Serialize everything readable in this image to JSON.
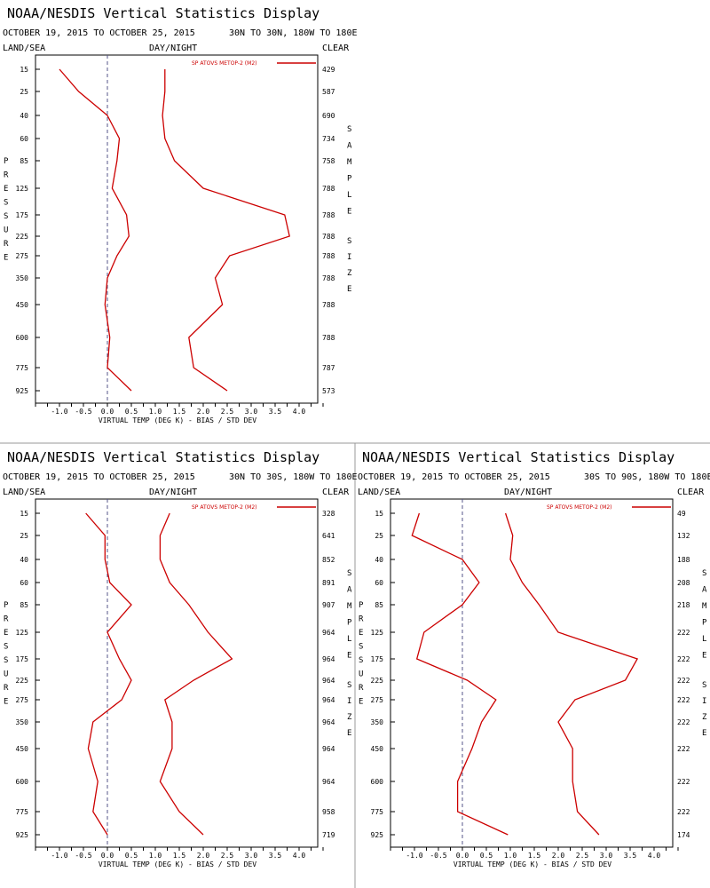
{
  "page": {
    "title": "NOAA/NESDIS Vertical Statistics Display",
    "left_header": "LAND/SEA",
    "mid_header": "DAY/NIGHT",
    "right_header": "CLEAR",
    "y_axis_label": "PRESSURE",
    "right_axis_label_1": "SAMPLE",
    "right_axis_label_2": "SIZE",
    "x_axis_label": "VIRTUAL TEMP (DEG K) - BIAS / STD DEV",
    "legend_label": "SP ATOVS METOP-2 (M2)",
    "line_color": "#cc0000",
    "zero_line_color": "#555588"
  },
  "chart_data": [
    {
      "type": "line",
      "title": "NOAA/NESDIS Vertical Statistics Display",
      "subtitle": "OCTOBER 19, 2015 TO OCTOBER 25, 2015",
      "region": "30N TO 30N, 180W TO 180E",
      "pressure_levels": [
        "15",
        "25",
        "40",
        "60",
        "85",
        "125",
        "175",
        "225",
        "275",
        "350",
        "450",
        "600",
        "775",
        "925"
      ],
      "series": [
        {
          "name": "SP ATOVS METOP-2 (M2)",
          "kind": "bias",
          "values": [
            -1.0,
            -0.6,
            0.0,
            0.25,
            0.2,
            0.1,
            0.4,
            0.45,
            0.2,
            0.0,
            -0.05,
            0.05,
            0.0,
            0.5
          ]
        },
        {
          "name": "SP ATOVS METOP-2 (M2)",
          "kind": "std_dev",
          "values": [
            1.2,
            1.2,
            1.15,
            1.2,
            1.4,
            2.0,
            3.7,
            3.8,
            2.55,
            2.25,
            2.4,
            1.7,
            1.8,
            2.5
          ]
        }
      ],
      "sample_size": [
        "429",
        "587",
        "690",
        "734",
        "758",
        "788",
        "788",
        "788",
        "788",
        "788",
        "788",
        "788",
        "787",
        "573"
      ],
      "xlim": [
        -1.5,
        4.5
      ],
      "x_ticks": [
        "-1.0",
        "-0.5",
        "0.0",
        "0.5",
        "1.0",
        "1.5",
        "2.0",
        "2.5",
        "3.0",
        "3.5",
        "4.0"
      ]
    },
    {
      "type": "line",
      "title": "NOAA/NESDIS Vertical Statistics Display",
      "subtitle": "OCTOBER 19, 2015 TO OCTOBER 25, 2015",
      "region": "30N TO 30S, 180W TO 180E",
      "pressure_levels": [
        "15",
        "25",
        "40",
        "60",
        "85",
        "125",
        "175",
        "225",
        "275",
        "350",
        "450",
        "600",
        "775",
        "925"
      ],
      "series": [
        {
          "name": "SP ATOVS METOP-2 (M2)",
          "kind": "bias",
          "values": [
            -0.45,
            -0.05,
            -0.05,
            0.05,
            0.5,
            0.0,
            0.25,
            0.5,
            0.3,
            -0.3,
            -0.4,
            -0.2,
            -0.3,
            0.0
          ]
        },
        {
          "name": "SP ATOVS METOP-2 (M2)",
          "kind": "std_dev",
          "values": [
            1.3,
            1.1,
            1.1,
            1.3,
            1.7,
            2.1,
            2.6,
            1.8,
            1.2,
            1.35,
            1.35,
            1.1,
            1.5,
            2.0
          ]
        }
      ],
      "sample_size": [
        "328",
        "641",
        "852",
        "891",
        "907",
        "964",
        "964",
        "964",
        "964",
        "964",
        "964",
        "964",
        "958",
        "719"
      ],
      "xlim": [
        -1.5,
        4.5
      ],
      "x_ticks": [
        "-1.0",
        "-0.5",
        "0.0",
        "0.5",
        "1.0",
        "1.5",
        "2.0",
        "2.5",
        "3.0",
        "3.5",
        "4.0"
      ]
    },
    {
      "type": "line",
      "title": "NOAA/NESDIS Vertical Statistics Display",
      "subtitle": "OCTOBER 19, 2015 TO OCTOBER 25, 2015",
      "region": "30S TO 90S, 180W TO 180E",
      "pressure_levels": [
        "15",
        "25",
        "40",
        "60",
        "85",
        "125",
        "175",
        "225",
        "275",
        "350",
        "450",
        "600",
        "775",
        "925"
      ],
      "series": [
        {
          "name": "SP ATOVS METOP-2 (M2)",
          "kind": "bias",
          "values": [
            -0.9,
            -1.05,
            0.0,
            0.35,
            0.0,
            -0.8,
            -0.95,
            0.1,
            0.7,
            0.4,
            0.2,
            -0.1,
            -0.1,
            0.95
          ]
        },
        {
          "name": "SP ATOVS METOP-2 (M2)",
          "kind": "std_dev",
          "values": [
            0.9,
            1.05,
            1.0,
            1.25,
            1.6,
            2.0,
            3.65,
            3.4,
            2.35,
            2.0,
            2.3,
            2.3,
            2.4,
            2.85
          ]
        }
      ],
      "sample_size": [
        "49",
        "132",
        "188",
        "208",
        "218",
        "222",
        "222",
        "222",
        "222",
        "222",
        "222",
        "222",
        "222",
        "174"
      ],
      "xlim": [
        -1.5,
        4.5
      ],
      "x_ticks": [
        "-1.0",
        "-0.5",
        "0.0",
        "0.5",
        "1.0",
        "1.5",
        "2.0",
        "2.5",
        "3.0",
        "3.5",
        "4.0"
      ]
    }
  ]
}
